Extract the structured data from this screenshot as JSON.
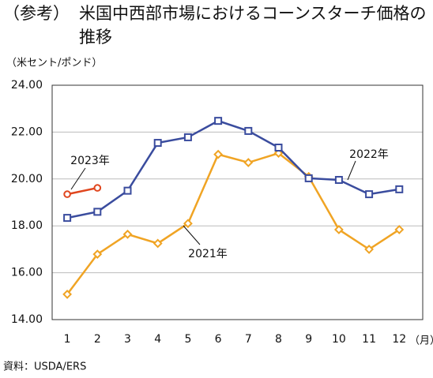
{
  "chart_data": {
    "type": "line",
    "prefix": "（参考）",
    "title": "米国中西部市場におけるコーンスターチ価格の推移",
    "y_label": "（米セント/ポンド）",
    "x_label": "（月）",
    "source": "資料：USDA/ERS",
    "categories": [
      "1",
      "2",
      "3",
      "4",
      "5",
      "6",
      "7",
      "8",
      "9",
      "10",
      "11",
      "12"
    ],
    "ylim": [
      14,
      24
    ],
    "yticks": [
      {
        "value": 14,
        "label": "14.00"
      },
      {
        "value": 16,
        "label": "16.00"
      },
      {
        "value": 18,
        "label": "18.00"
      },
      {
        "value": 20,
        "label": "20.00"
      },
      {
        "value": 22,
        "label": "22.00"
      },
      {
        "value": 24,
        "label": "24.00"
      }
    ],
    "grid": true,
    "series": [
      {
        "name": "2021年",
        "color": "#f0a424",
        "marker": "diamond",
        "values": [
          15.08,
          16.79,
          17.64,
          17.25,
          18.1,
          21.05,
          20.7,
          21.1,
          20.1,
          17.84,
          17.0,
          17.84
        ]
      },
      {
        "name": "2022年",
        "color": "#3a4c9e",
        "marker": "square",
        "values": [
          18.34,
          18.6,
          19.5,
          21.54,
          21.78,
          22.48,
          22.05,
          21.34,
          20.03,
          19.96,
          19.35,
          19.56
        ]
      },
      {
        "name": "2023年",
        "color": "#e0461e",
        "marker": "circle",
        "values": [
          19.35,
          19.62,
          null,
          null,
          null,
          null,
          null,
          null,
          null,
          null,
          null,
          null
        ]
      }
    ]
  }
}
